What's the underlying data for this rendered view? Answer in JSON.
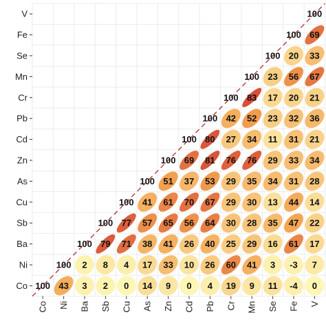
{
  "chart_data": {
    "type": "heatmap",
    "subtype": "correlation-ellipse-matrix-lower-triangle",
    "variables": [
      "Co",
      "Ni",
      "Ba",
      "Sb",
      "Cu",
      "As",
      "Zn",
      "Cd",
      "Pb",
      "Cr",
      "Mn",
      "Se",
      "Fe",
      "V"
    ],
    "x_tick_labels": [
      "Co",
      "Ni",
      "Ba",
      "Sb",
      "Cu",
      "As",
      "Zn",
      "Cd",
      "Pb",
      "Cr",
      "Mn",
      "Se",
      "Fe",
      "V"
    ],
    "y_tick_labels_top_to_bottom": [
      "V",
      "Fe",
      "Se",
      "Mn",
      "Cr",
      "Pb",
      "Cd",
      "Zn",
      "As",
      "Cu",
      "Sb",
      "Ba",
      "Ni",
      "Co"
    ],
    "values_unit": "correlation coefficient x 100",
    "matrix": {
      "V": [
        null,
        null,
        null,
        null,
        null,
        null,
        null,
        null,
        null,
        null,
        null,
        null,
        null,
        100
      ],
      "Fe": [
        null,
        null,
        null,
        null,
        null,
        null,
        null,
        null,
        null,
        null,
        null,
        null,
        100,
        69
      ],
      "Se": [
        null,
        null,
        null,
        null,
        null,
        null,
        null,
        null,
        null,
        null,
        null,
        100,
        20,
        33
      ],
      "Mn": [
        null,
        null,
        null,
        null,
        null,
        null,
        null,
        null,
        null,
        null,
        100,
        23,
        56,
        67
      ],
      "Cr": [
        null,
        null,
        null,
        null,
        null,
        null,
        null,
        null,
        null,
        100,
        83,
        17,
        20,
        21
      ],
      "Pb": [
        null,
        null,
        null,
        null,
        null,
        null,
        null,
        null,
        100,
        42,
        52,
        23,
        32,
        36
      ],
      "Cd": [
        null,
        null,
        null,
        null,
        null,
        null,
        null,
        100,
        80,
        27,
        34,
        11,
        31,
        21
      ],
      "Zn": [
        null,
        null,
        null,
        null,
        null,
        null,
        100,
        69,
        81,
        76,
        76,
        29,
        33,
        34
      ],
      "As": [
        null,
        null,
        null,
        null,
        null,
        100,
        51,
        37,
        53,
        29,
        35,
        34,
        31,
        28
      ],
      "Cu": [
        null,
        null,
        null,
        null,
        100,
        41,
        61,
        70,
        67,
        29,
        30,
        13,
        44,
        14
      ],
      "Sb": [
        null,
        null,
        null,
        100,
        77,
        57,
        65,
        56,
        64,
        30,
        28,
        35,
        47,
        22
      ],
      "Ba": [
        null,
        null,
        100,
        79,
        71,
        38,
        41,
        26,
        40,
        25,
        29,
        16,
        61,
        17
      ],
      "Ni": [
        null,
        100,
        2,
        8,
        4,
        17,
        33,
        10,
        26,
        60,
        41,
        3,
        -3,
        7
      ],
      "Co": [
        100,
        43,
        3,
        2,
        0,
        14,
        9,
        0,
        4,
        19,
        9,
        11,
        -4,
        0
      ]
    },
    "color_scale": {
      "low": "#fdf6b5",
      "mid": "#f3a14f",
      "high": "#c8262f"
    },
    "diagonal_reference_line": true,
    "grid": true,
    "legend": "none"
  }
}
